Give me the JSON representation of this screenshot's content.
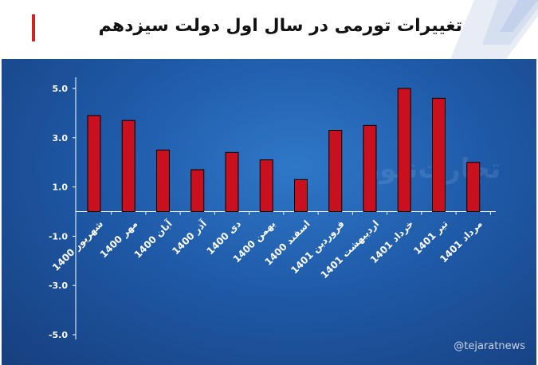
{
  "header": {
    "title": "تغییرات تورمی در سال اول دولت سیزدهم"
  },
  "watermark": "تجارت‌نیوز",
  "social_handle": "@tejaratnews",
  "colors": {
    "bar": "#c8101e",
    "panel": "#1f5aa8",
    "accent": "#d42027",
    "axis": "#ffffff"
  },
  "chart_data": {
    "type": "bar",
    "title": "تغییرات تورمی در سال اول دولت سیزدهم",
    "xlabel": "",
    "ylabel": "",
    "ylim": [
      -5,
      5
    ],
    "y_ticks": [
      5,
      3,
      1,
      -1,
      -3,
      -5
    ],
    "y_tick_labels": [
      "5.0",
      "3.0",
      "1.0",
      "-1.0",
      "-3.0",
      "-5.0"
    ],
    "categories": [
      "شهریور 1400",
      "مهر 1400",
      "آبان 1400",
      "آذر 1400",
      "دی 1400",
      "بهمن 1400",
      "اسفند 1400",
      "فروردین 1401",
      "اردیبهشت 1401",
      "خرداد 1401",
      "تیر 1401",
      "مرداد 1401"
    ],
    "values": [
      3.9,
      3.7,
      2.5,
      1.7,
      2.4,
      2.1,
      1.3,
      3.3,
      3.5,
      5.0,
      4.6,
      2.0
    ],
    "grid": false,
    "legend": "none"
  }
}
